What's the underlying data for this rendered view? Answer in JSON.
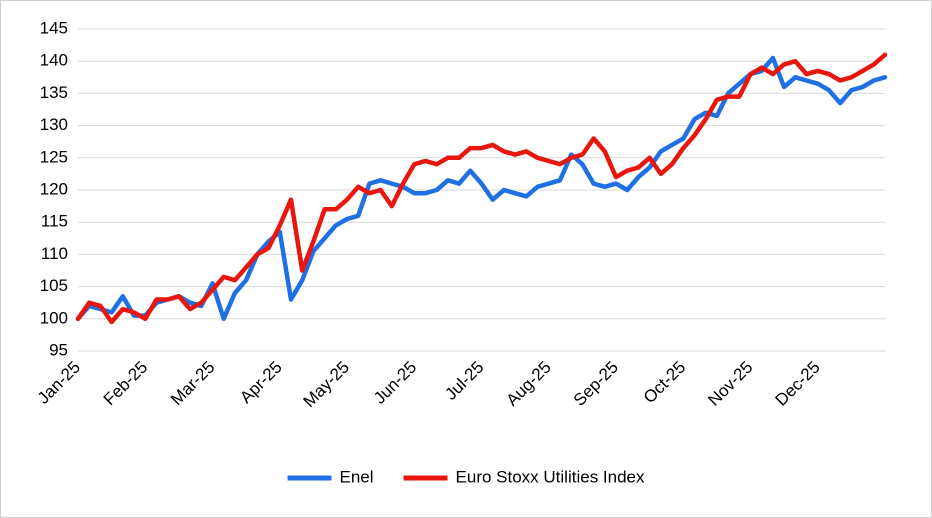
{
  "chart_data": {
    "type": "line",
    "categories": [
      "Jan-25",
      null,
      null,
      null,
      null,
      null,
      "Feb-25",
      null,
      null,
      null,
      null,
      null,
      "Mar-25",
      null,
      null,
      null,
      null,
      null,
      "Apr-25",
      null,
      null,
      null,
      null,
      null,
      "May-25",
      null,
      null,
      null,
      null,
      null,
      "Jun-25",
      null,
      null,
      null,
      null,
      null,
      "Jul-25",
      null,
      null,
      null,
      null,
      null,
      "Aug-25",
      null,
      null,
      null,
      null,
      null,
      "Sep-25",
      null,
      null,
      null,
      null,
      null,
      "Oct-25",
      null,
      null,
      null,
      null,
      null,
      "Nov-25",
      null,
      null,
      null,
      null,
      null,
      "Dec-25",
      null,
      null,
      null,
      null,
      null,
      null
    ],
    "series": [
      {
        "name": "Enel",
        "color": "#1f6fe5",
        "values": [
          100,
          102,
          101.5,
          101,
          103.5,
          100.5,
          100.5,
          102.5,
          103,
          103.5,
          102.5,
          102,
          105.5,
          100,
          104,
          106,
          110,
          112,
          113.5,
          103,
          106,
          110.5,
          112.5,
          114.5,
          115.5,
          116,
          121,
          121.5,
          121,
          120.5,
          119.5,
          119.5,
          120,
          121.5,
          121,
          123,
          121,
          118.5,
          120,
          119.5,
          119,
          120.5,
          121,
          121.5,
          125.5,
          124,
          121,
          120.5,
          121,
          120,
          122,
          123.5,
          126,
          127,
          128,
          131,
          132,
          131.5,
          135,
          136.5,
          138,
          138.5,
          140.5,
          136,
          137.5,
          137,
          136.5,
          135.5,
          133.5,
          135.5,
          136,
          137,
          137.5
        ]
      },
      {
        "name": "Euro Stoxx Utilities Index",
        "color": "#e8160c",
        "values": [
          100,
          102.5,
          102,
          99.5,
          101.5,
          101,
          100,
          103,
          103,
          103.5,
          101.5,
          102.5,
          104.5,
          106.5,
          106,
          108,
          110,
          111,
          114.5,
          118.5,
          107.5,
          112,
          117,
          117,
          118.5,
          120.5,
          119.5,
          120,
          117.5,
          121,
          124,
          124.5,
          124,
          125,
          125,
          126.5,
          126.5,
          127,
          126,
          125.5,
          126,
          125,
          124.5,
          124,
          125,
          125.5,
          128,
          126,
          122,
          123,
          123.5,
          125,
          122.5,
          124,
          126.5,
          128.5,
          131,
          134,
          134.5,
          134.5,
          138,
          139,
          138,
          139.5,
          140,
          138,
          138.5,
          138,
          137,
          137.5,
          138.5,
          139.5,
          141
        ]
      }
    ],
    "ylim": [
      95,
      145
    ],
    "yticks": [
      95,
      100,
      105,
      110,
      115,
      120,
      125,
      130,
      135,
      140,
      145
    ],
    "grid": true,
    "legend": "bottom"
  }
}
